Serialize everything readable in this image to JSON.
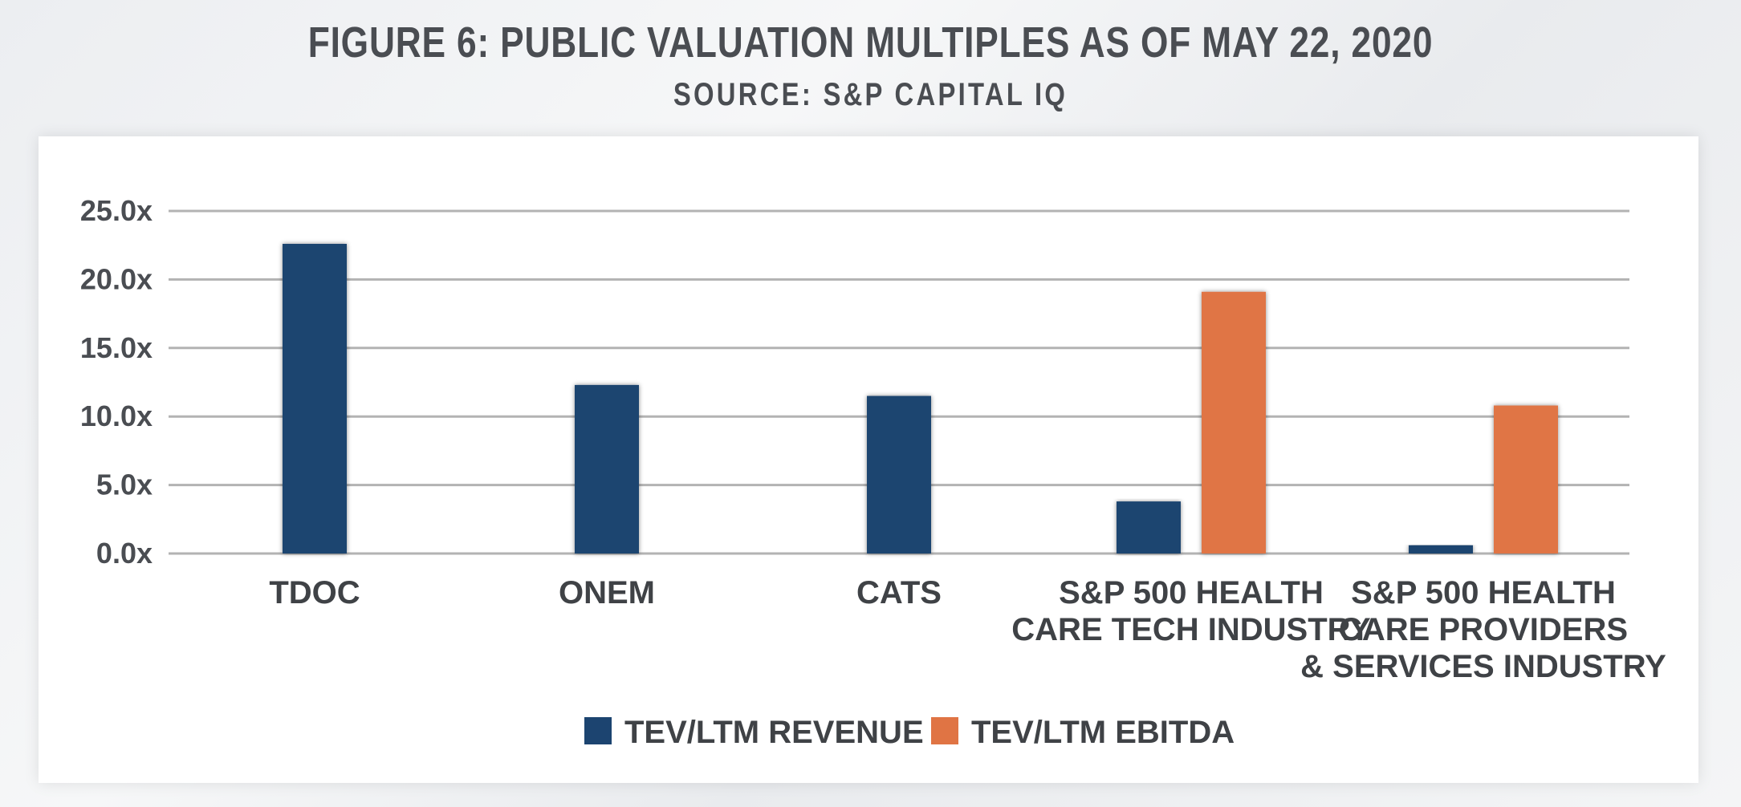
{
  "chart_data": {
    "type": "bar",
    "title": "FIGURE 6: PUBLIC VALUATION MULTIPLES AS OF MAY 22, 2020",
    "subtitle": "SOURCE: S&P CAPITAL IQ",
    "categories": [
      [
        "TDOC"
      ],
      [
        "ONEM"
      ],
      [
        "CATS"
      ],
      [
        "S&P 500 HEALTH",
        "CARE TECH INDUSTRY"
      ],
      [
        "S&P 500 HEALTH",
        "CARE PROVIDERS",
        "& SERVICES INDUSTRY"
      ]
    ],
    "series": [
      {
        "name": "TEV/LTM REVENUE",
        "color": "#1c4470",
        "values": [
          22.6,
          12.3,
          11.5,
          3.8,
          0.6
        ]
      },
      {
        "name": "TEV/LTM EBITDA",
        "color": "#e07444",
        "values": [
          null,
          null,
          null,
          19.1,
          10.8
        ]
      }
    ],
    "ylim": [
      0,
      25
    ],
    "yticks": [
      0,
      5,
      10,
      15,
      20,
      25
    ],
    "ytick_labels": [
      "0.0x",
      "5.0x",
      "10.0x",
      "15.0x",
      "20.0x",
      "25.0x"
    ],
    "grid": true,
    "legend": "bottom"
  }
}
